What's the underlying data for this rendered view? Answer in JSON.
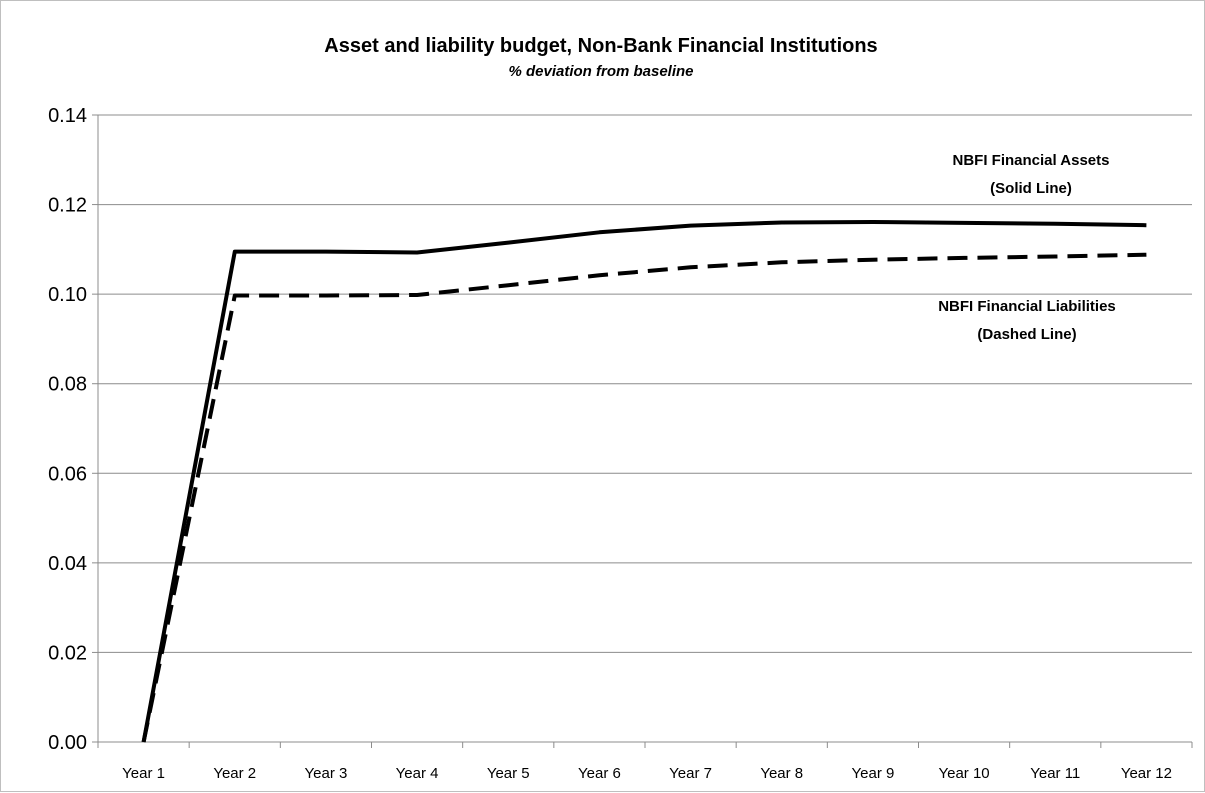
{
  "chart_data": {
    "type": "line",
    "title": "Asset and liability budget, Non-Bank Financial Institutions",
    "subtitle": "% deviation from baseline",
    "xlabel": "",
    "ylabel": "",
    "categories": [
      "Year 1",
      "Year 2",
      "Year 3",
      "Year 4",
      "Year 5",
      "Year 6",
      "Year 7",
      "Year 8",
      "Year 9",
      "Year 10",
      "Year 11",
      "Year 12"
    ],
    "ylim": [
      0,
      0.14
    ],
    "yticks": [
      "0.00",
      "0.02",
      "0.04",
      "0.06",
      "0.08",
      "0.10",
      "0.12",
      "0.14"
    ],
    "grid": true,
    "legend": "none",
    "series": [
      {
        "line_style": "solid",
        "color": "#000000",
        "values": [
          0.0,
          0.1095,
          0.1095,
          0.1093,
          0.1115,
          0.1138,
          0.1153,
          0.116,
          0.1161,
          0.1159,
          0.1157,
          0.1154
        ]
      },
      {
        "line_style": "dashed",
        "color": "#000000",
        "values": [
          0.0,
          0.0997,
          0.0997,
          0.0998,
          0.102,
          0.1042,
          0.106,
          0.1071,
          0.1077,
          0.1081,
          0.1084,
          0.1088
        ]
      }
    ],
    "annotations": [
      {
        "id": "assets",
        "lines": [
          "NBFI Financial Assets",
          "(Solid Line)"
        ]
      },
      {
        "id": "liabilities",
        "lines": [
          "NBFI Financial Liabilities",
          "(Dashed Line)"
        ]
      }
    ]
  }
}
